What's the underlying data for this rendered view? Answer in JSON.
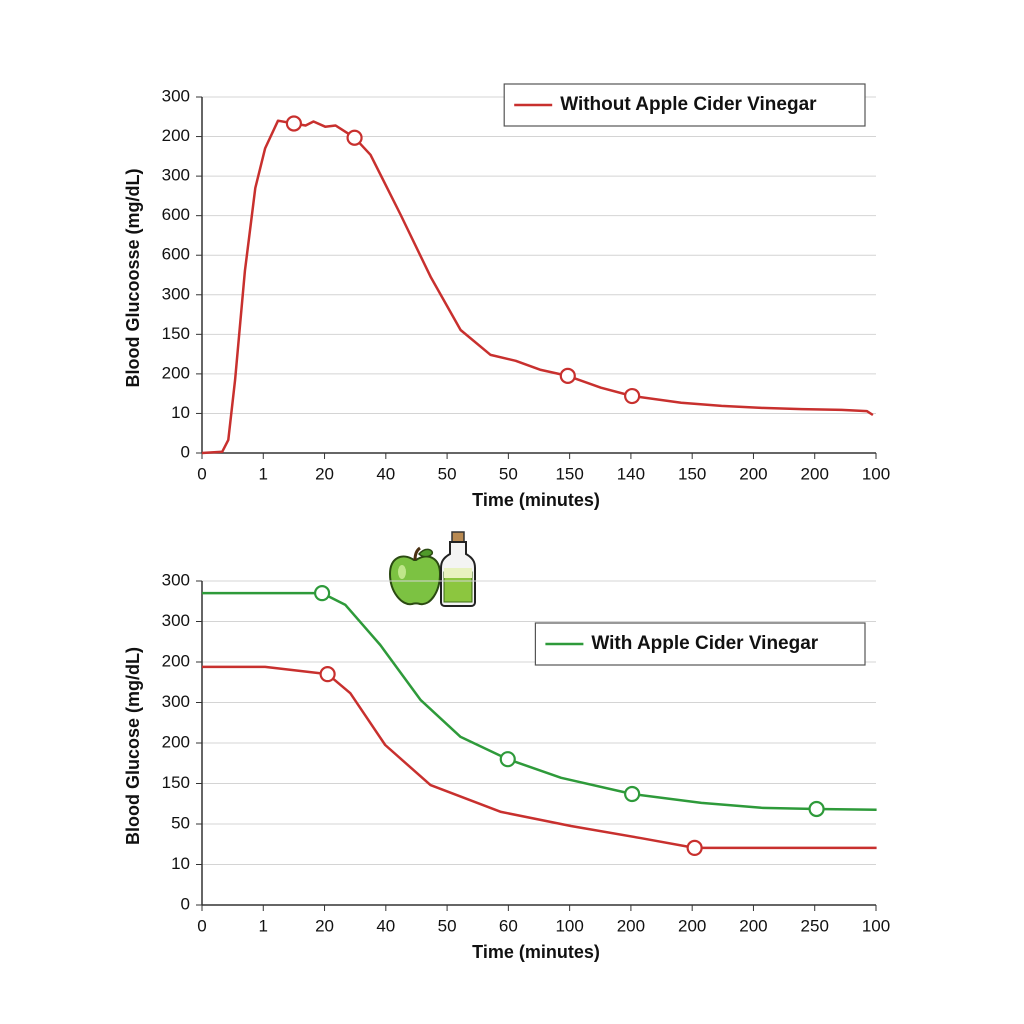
{
  "chart_data": [
    {
      "type": "line",
      "xlabel": "Time (minutes)",
      "ylabel": "Blood Glucoosse (mg/dL)",
      "xlim": [
        0,
        11
      ],
      "ylim": [
        0,
        9
      ],
      "xticks": [
        0,
        1,
        {
          "value": 2,
          "label": "20"
        },
        {
          "value": 3,
          "label": "40"
        },
        {
          "value": 4,
          "label": "50"
        },
        {
          "value": 5,
          "label": "50"
        },
        {
          "value": 6,
          "label": "150"
        },
        {
          "value": 7,
          "label": "140"
        },
        {
          "value": 8,
          "label": "150"
        },
        {
          "value": 9,
          "label": "200"
        },
        {
          "value": 10,
          "label": "200"
        },
        {
          "value": 11,
          "label": "100"
        }
      ],
      "yticks": [
        0,
        {
          "value": 1,
          "label": "10"
        },
        {
          "value": 2,
          "label": "200"
        },
        {
          "value": 3,
          "label": "150"
        },
        {
          "value": 4,
          "label": "300"
        },
        {
          "value": 5,
          "label": "600"
        },
        {
          "value": 6,
          "label": "600"
        },
        {
          "value": 7,
          "label": "300"
        },
        {
          "value": 8,
          "label": "200"
        },
        {
          "value": 9,
          "label": "300"
        }
      ],
      "grid": true,
      "legend": "upper right",
      "series": [
        {
          "name": "Without Apple Cider Vinegar",
          "color": "#c8302e",
          "x": [
            0,
            0.33,
            0.43,
            0.54,
            0.7,
            0.87,
            1.03,
            1.24,
            1.5,
            1.69,
            1.82,
            2.01,
            2.18,
            2.49,
            2.75,
            3.24,
            3.73,
            4.22,
            4.71,
            5.12,
            5.53,
            5.97,
            6.51,
            7.02,
            7.82,
            8.48,
            9.13,
            9.79,
            10.44,
            10.85,
            10.95
          ],
          "values": [
            0,
            0.03,
            0.33,
            1.85,
            4.6,
            6.7,
            7.7,
            8.4,
            8.33,
            8.28,
            8.38,
            8.25,
            8.28,
            7.97,
            7.54,
            6.03,
            4.46,
            3.11,
            2.48,
            2.33,
            2.1,
            1.95,
            1.65,
            1.44,
            1.27,
            1.19,
            1.14,
            1.11,
            1.09,
            1.06,
            0.96
          ],
          "markers": {
            "x": [
              1.5,
              2.49,
              5.97,
              7.02
            ],
            "y": [
              8.33,
              7.97,
              1.95,
              1.44
            ]
          }
        }
      ]
    },
    {
      "type": "line",
      "xlabel": "Time (minutes)",
      "ylabel": "Blood Glucose (mg/dL)",
      "xlim": [
        0,
        11
      ],
      "ylim": [
        0,
        8
      ],
      "xticks": [
        0,
        1,
        {
          "value": 2,
          "label": "20"
        },
        {
          "value": 3,
          "label": "40"
        },
        {
          "value": 4,
          "label": "50"
        },
        {
          "value": 5,
          "label": "60"
        },
        {
          "value": 6,
          "label": "100"
        },
        {
          "value": 7,
          "label": "200"
        },
        {
          "value": 8,
          "label": "200"
        },
        {
          "value": 9,
          "label": "200"
        },
        {
          "value": 10,
          "label": "250"
        },
        {
          "value": 11,
          "label": "100"
        }
      ],
      "yticks": [
        0,
        {
          "value": 1,
          "label": "10"
        },
        {
          "value": 2,
          "label": "50"
        },
        {
          "value": 3,
          "label": "150"
        },
        {
          "value": 4,
          "label": "200"
        },
        {
          "value": 5,
          "label": "300"
        },
        {
          "value": 6,
          "label": "200"
        },
        {
          "value": 7,
          "label": "300"
        },
        {
          "value": 8,
          "label": "300"
        }
      ],
      "grid": true,
      "legend": "upper right",
      "series": [
        {
          "name": "With Apple Cider Vinegar",
          "color": "#2e9a3a",
          "x": [
            0,
            1.96,
            2.34,
            2.91,
            3.57,
            4.22,
            4.99,
            5.86,
            7.02,
            8.15,
            9.13,
            10.03,
            11.01
          ],
          "values": [
            7.7,
            7.7,
            7.41,
            6.42,
            5.06,
            4.15,
            3.6,
            3.14,
            2.74,
            2.52,
            2.4,
            2.37,
            2.35
          ],
          "markers": {
            "x": [
              1.96,
              4.99,
              7.02,
              10.03
            ],
            "y": [
              7.7,
              3.6,
              2.74,
              2.37
            ]
          }
        },
        {
          "color": "#c8302e",
          "x": [
            0,
            1.03,
            2.05,
            2.42,
            2.99,
            3.73,
            4.88,
            6.02,
            7.17,
            8.04,
            9.13,
            11.01
          ],
          "values": [
            5.88,
            5.88,
            5.7,
            5.23,
            3.95,
            2.96,
            2.3,
            1.95,
            1.65,
            1.41,
            1.41,
            1.41
          ],
          "markers": {
            "x": [
              2.05,
              8.04
            ],
            "y": [
              5.7,
              1.41
            ]
          }
        }
      ]
    }
  ]
}
